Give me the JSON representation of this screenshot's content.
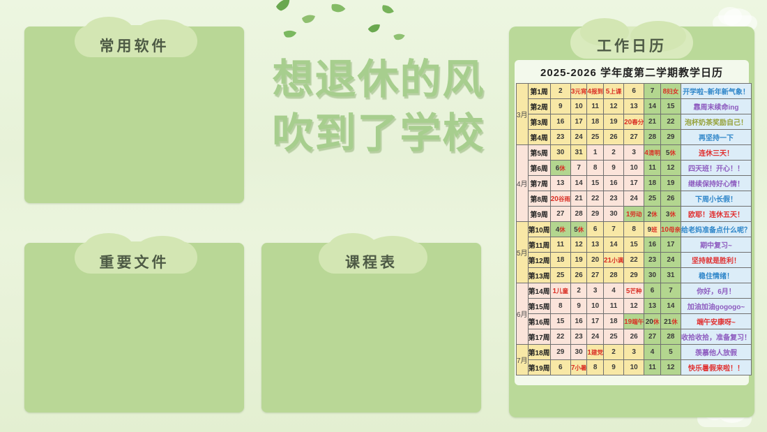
{
  "desktop": {
    "panels": {
      "software_label": "常用软件",
      "files_label": "重要文件",
      "schedule_label": "课程表"
    },
    "title_line1": "想退休的风",
    "title_line2": "吹到了学校"
  },
  "decorations": {
    "leaf_icon_glyph": "🍃",
    "cloud_icon_glyph": "☁"
  },
  "calendar": {
    "board_label": "工作日历",
    "subtitle": "2025-2026 学年度第二学期教学日历",
    "colors": {
      "weekday_yellow": "#f8e8a6",
      "weekday_pink": "#fbe4da",
      "weekend_green": "#b3d68f",
      "note_blue_bg": "#dcedf8",
      "holiday_red": "#d92f25"
    },
    "note_colors": {
      "blue": "#2f86c9",
      "purple": "#8d5bbf",
      "red": "#e03131",
      "olive": "#96a23a"
    },
    "months": [
      {
        "name": "3月",
        "rows": 4,
        "tone": "y"
      },
      {
        "name": "4月",
        "rows": 5,
        "tone": "p"
      },
      {
        "name": "5月",
        "rows": 4,
        "tone": "y"
      },
      {
        "name": "6月",
        "rows": 4,
        "tone": "p"
      },
      {
        "name": "7月",
        "rows": 2,
        "tone": "y"
      }
    ],
    "weeks": [
      {
        "label": "第1周",
        "tone": "y",
        "note": {
          "text": "开学啦~新年新气象！",
          "c": "blue"
        },
        "days": [
          {
            "n": "2",
            "bg": "y"
          },
          {
            "n": "3",
            "t": "元宵",
            "r": 1,
            "bg": "y"
          },
          {
            "n": "4",
            "t": "报到",
            "r": 1,
            "bg": "y"
          },
          {
            "n": "5",
            "t": "上课",
            "r": 1,
            "bg": "y"
          },
          {
            "n": "6",
            "bg": "y"
          },
          {
            "n": "7",
            "bg": "g"
          },
          {
            "n": "8",
            "t": "妇女",
            "r": 1,
            "bg": "g"
          }
        ]
      },
      {
        "label": "第2周",
        "tone": "y",
        "note": {
          "text": "靠周末续命ing",
          "c": "purple"
        },
        "days": [
          {
            "n": "9",
            "bg": "y"
          },
          {
            "n": "10",
            "bg": "y"
          },
          {
            "n": "11",
            "bg": "y"
          },
          {
            "n": "12",
            "bg": "y"
          },
          {
            "n": "13",
            "bg": "y"
          },
          {
            "n": "14",
            "bg": "g"
          },
          {
            "n": "15",
            "bg": "g"
          }
        ]
      },
      {
        "label": "第3周",
        "tone": "y",
        "note": {
          "text": "泡杯奶茶奖励自己！",
          "c": "olive"
        },
        "days": [
          {
            "n": "16",
            "bg": "y"
          },
          {
            "n": "17",
            "bg": "y"
          },
          {
            "n": "18",
            "bg": "y"
          },
          {
            "n": "19",
            "bg": "y"
          },
          {
            "n": "20",
            "t": "春分",
            "r": 1,
            "bg": "y"
          },
          {
            "n": "21",
            "bg": "g"
          },
          {
            "n": "22",
            "bg": "g"
          }
        ]
      },
      {
        "label": "第4周",
        "tone": "y",
        "note": {
          "text": "再坚持一下",
          "c": "blue"
        },
        "days": [
          {
            "n": "23",
            "bg": "y"
          },
          {
            "n": "24",
            "bg": "y"
          },
          {
            "n": "25",
            "bg": "y"
          },
          {
            "n": "26",
            "bg": "y"
          },
          {
            "n": "27",
            "bg": "y"
          },
          {
            "n": "28",
            "bg": "g"
          },
          {
            "n": "29",
            "bg": "g"
          }
        ]
      },
      {
        "label": "第5周",
        "tone": "p",
        "note": {
          "text": "连休三天！",
          "c": "red"
        },
        "days": [
          {
            "n": "30",
            "bg": "y"
          },
          {
            "n": "31",
            "bg": "y"
          },
          {
            "n": "1",
            "bg": "p"
          },
          {
            "n": "2",
            "bg": "p"
          },
          {
            "n": "3",
            "bg": "p"
          },
          {
            "n": "4",
            "t": "清明",
            "r": 1,
            "bg": "g"
          },
          {
            "n": "5",
            "t": "休",
            "bg": "g"
          }
        ]
      },
      {
        "label": "第6周",
        "tone": "p",
        "note": {
          "text": "四天班！开心！！",
          "c": "purple"
        },
        "days": [
          {
            "n": "6",
            "t": "休",
            "bg": "g"
          },
          {
            "n": "7",
            "bg": "p"
          },
          {
            "n": "8",
            "bg": "p"
          },
          {
            "n": "9",
            "bg": "p"
          },
          {
            "n": "10",
            "bg": "p"
          },
          {
            "n": "11",
            "bg": "g"
          },
          {
            "n": "12",
            "bg": "g"
          }
        ]
      },
      {
        "label": "第7周",
        "tone": "p",
        "note": {
          "text": "继续保持好心情！",
          "c": "purple"
        },
        "days": [
          {
            "n": "13",
            "bg": "p"
          },
          {
            "n": "14",
            "bg": "p"
          },
          {
            "n": "15",
            "bg": "p"
          },
          {
            "n": "16",
            "bg": "p"
          },
          {
            "n": "17",
            "bg": "p"
          },
          {
            "n": "18",
            "bg": "g"
          },
          {
            "n": "19",
            "bg": "g"
          }
        ]
      },
      {
        "label": "第8周",
        "tone": "p",
        "note": {
          "text": "下周小长假！",
          "c": "blue"
        },
        "days": [
          {
            "n": "20",
            "t": "谷雨",
            "r": 1,
            "bg": "p"
          },
          {
            "n": "21",
            "bg": "p"
          },
          {
            "n": "22",
            "bg": "p"
          },
          {
            "n": "23",
            "bg": "p"
          },
          {
            "n": "24",
            "bg": "p"
          },
          {
            "n": "25",
            "bg": "g"
          },
          {
            "n": "26",
            "bg": "g"
          }
        ]
      },
      {
        "label": "第9周",
        "tone": "p",
        "note": {
          "text": "欧耶！连休五天！",
          "c": "red"
        },
        "days": [
          {
            "n": "27",
            "bg": "p"
          },
          {
            "n": "28",
            "bg": "p"
          },
          {
            "n": "29",
            "bg": "p"
          },
          {
            "n": "30",
            "bg": "p"
          },
          {
            "n": "1",
            "t": "劳动",
            "r": 1,
            "bg": "g"
          },
          {
            "n": "2",
            "t": "休",
            "bg": "g"
          },
          {
            "n": "3",
            "t": "休",
            "bg": "g"
          }
        ]
      },
      {
        "label": "第10周",
        "tone": "y",
        "note": {
          "text": "给老妈准备点什么呢？",
          "c": "blue"
        },
        "days": [
          {
            "n": "4",
            "t": "休",
            "bg": "g"
          },
          {
            "n": "5",
            "t": "休",
            "bg": "g"
          },
          {
            "n": "6",
            "bg": "y"
          },
          {
            "n": "7",
            "bg": "y"
          },
          {
            "n": "8",
            "bg": "y"
          },
          {
            "n": "9",
            "t": "班",
            "bg": "y"
          },
          {
            "n": "10",
            "t": "母亲",
            "r": 1,
            "bg": "g"
          }
        ]
      },
      {
        "label": "第11周",
        "tone": "y",
        "note": {
          "text": "期中复习~",
          "c": "purple"
        },
        "days": [
          {
            "n": "11",
            "bg": "y"
          },
          {
            "n": "12",
            "bg": "y"
          },
          {
            "n": "13",
            "bg": "y"
          },
          {
            "n": "14",
            "bg": "y"
          },
          {
            "n": "15",
            "bg": "y"
          },
          {
            "n": "16",
            "bg": "g"
          },
          {
            "n": "17",
            "bg": "g"
          }
        ]
      },
      {
        "label": "第12周",
        "tone": "y",
        "note": {
          "text": "坚持就是胜利！",
          "c": "red"
        },
        "days": [
          {
            "n": "18",
            "bg": "y"
          },
          {
            "n": "19",
            "bg": "y"
          },
          {
            "n": "20",
            "bg": "y"
          },
          {
            "n": "21",
            "t": "小满",
            "r": 1,
            "bg": "y"
          },
          {
            "n": "22",
            "bg": "y"
          },
          {
            "n": "23",
            "bg": "g"
          },
          {
            "n": "24",
            "bg": "g"
          }
        ]
      },
      {
        "label": "第13周",
        "tone": "y",
        "note": {
          "text": "稳住情绪！",
          "c": "blue"
        },
        "days": [
          {
            "n": "25",
            "bg": "y"
          },
          {
            "n": "26",
            "bg": "y"
          },
          {
            "n": "27",
            "bg": "y"
          },
          {
            "n": "28",
            "bg": "y"
          },
          {
            "n": "29",
            "bg": "y"
          },
          {
            "n": "30",
            "bg": "g"
          },
          {
            "n": "31",
            "bg": "g"
          }
        ]
      },
      {
        "label": "第14周",
        "tone": "p",
        "note": {
          "text": "你好，6月！",
          "c": "purple"
        },
        "days": [
          {
            "n": "1",
            "t": "儿童",
            "r": 1,
            "bg": "p"
          },
          {
            "n": "2",
            "bg": "p"
          },
          {
            "n": "3",
            "bg": "p"
          },
          {
            "n": "4",
            "bg": "p"
          },
          {
            "n": "5",
            "t": "芒种",
            "r": 1,
            "bg": "p"
          },
          {
            "n": "6",
            "bg": "g"
          },
          {
            "n": "7",
            "bg": "g"
          }
        ]
      },
      {
        "label": "第15周",
        "tone": "p",
        "note": {
          "text": "加油加油gogogo~",
          "c": "purple"
        },
        "days": [
          {
            "n": "8",
            "bg": "p"
          },
          {
            "n": "9",
            "bg": "p"
          },
          {
            "n": "10",
            "bg": "p"
          },
          {
            "n": "11",
            "bg": "p"
          },
          {
            "n": "12",
            "bg": "p"
          },
          {
            "n": "13",
            "bg": "g"
          },
          {
            "n": "14",
            "bg": "g"
          }
        ]
      },
      {
        "label": "第16周",
        "tone": "p",
        "note": {
          "text": "端午安康呀~",
          "c": "red"
        },
        "days": [
          {
            "n": "15",
            "bg": "p"
          },
          {
            "n": "16",
            "bg": "p"
          },
          {
            "n": "17",
            "bg": "p"
          },
          {
            "n": "18",
            "bg": "p"
          },
          {
            "n": "19",
            "t": "端午",
            "r": 1,
            "bg": "g"
          },
          {
            "n": "20",
            "t": "休",
            "bg": "g"
          },
          {
            "n": "21",
            "t": "休",
            "bg": "g"
          }
        ]
      },
      {
        "label": "第17周",
        "tone": "p",
        "note": {
          "text": "收拾收拾，准备复习！",
          "c": "purple"
        },
        "days": [
          {
            "n": "22",
            "bg": "p"
          },
          {
            "n": "23",
            "bg": "p"
          },
          {
            "n": "24",
            "bg": "p"
          },
          {
            "n": "25",
            "bg": "p"
          },
          {
            "n": "26",
            "bg": "p"
          },
          {
            "n": "27",
            "bg": "g"
          },
          {
            "n": "28",
            "bg": "g"
          }
        ]
      },
      {
        "label": "第18周",
        "tone": "y",
        "note": {
          "text": "羡慕他人放假",
          "c": "purple"
        },
        "days": [
          {
            "n": "29",
            "bg": "p"
          },
          {
            "n": "30",
            "bg": "p"
          },
          {
            "n": "1",
            "t": "建党",
            "r": 1,
            "bg": "y"
          },
          {
            "n": "2",
            "bg": "y"
          },
          {
            "n": "3",
            "bg": "y"
          },
          {
            "n": "4",
            "bg": "g"
          },
          {
            "n": "5",
            "bg": "g"
          }
        ]
      },
      {
        "label": "第19周",
        "tone": "y",
        "note": {
          "text": "快乐暑假来啦！！",
          "c": "red"
        },
        "days": [
          {
            "n": "6",
            "bg": "y"
          },
          {
            "n": "7",
            "t": "小暑",
            "r": 1,
            "bg": "y"
          },
          {
            "n": "8",
            "bg": "y"
          },
          {
            "n": "9",
            "bg": "y"
          },
          {
            "n": "10",
            "bg": "y"
          },
          {
            "n": "11",
            "bg": "g"
          },
          {
            "n": "12",
            "bg": "g"
          }
        ]
      }
    ]
  }
}
